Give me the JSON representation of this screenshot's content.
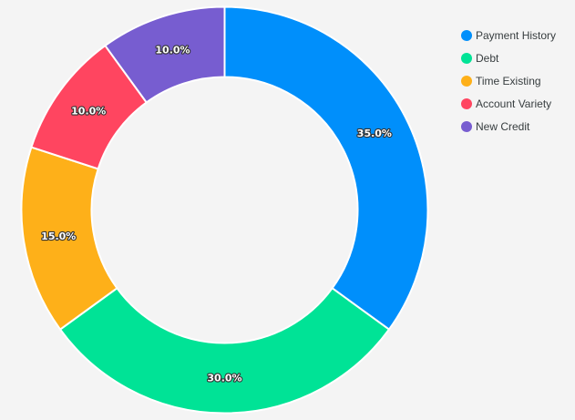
{
  "chart_data": {
    "type": "pie",
    "variant": "donut",
    "categories": [
      "Payment History",
      "Debt",
      "Time Existing",
      "Account Variety",
      "New Credit"
    ],
    "values": [
      35,
      30,
      15,
      10,
      10
    ],
    "labels": [
      "35.0%",
      "30.0%",
      "15.0%",
      "10.0%",
      "10.0%"
    ],
    "colors": [
      "#008ffb",
      "#00e396",
      "#feb019",
      "#ff4560",
      "#775dd0"
    ],
    "legend_position": "top-right",
    "title": "",
    "start_angle": "top (12 o'clock), clockwise"
  },
  "legend": {
    "items": [
      {
        "label": "Payment History",
        "color": "#008ffb"
      },
      {
        "label": "Debt",
        "color": "#00e396"
      },
      {
        "label": "Time Existing",
        "color": "#feb019"
      },
      {
        "label": "Account Variety",
        "color": "#ff4560"
      },
      {
        "label": "New Credit",
        "color": "#775dd0"
      }
    ]
  }
}
